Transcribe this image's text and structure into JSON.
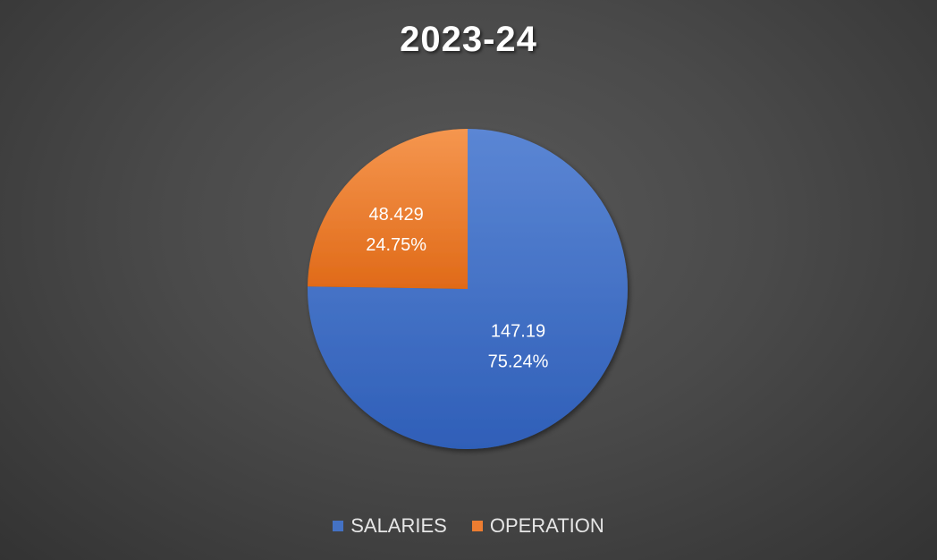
{
  "chart_data": {
    "type": "pie",
    "title": "2023-24",
    "categories": [
      "SALARIES",
      "OPERATION"
    ],
    "values": [
      147.19,
      48.429
    ],
    "percent_labels": [
      "75.24%",
      "24.75%"
    ],
    "value_labels": [
      "147.19",
      "48.429"
    ],
    "colors": [
      "#4472c4",
      "#ed7d31"
    ],
    "legend_position": "bottom",
    "start_angle_deg": 0,
    "direction": "clockwise"
  }
}
